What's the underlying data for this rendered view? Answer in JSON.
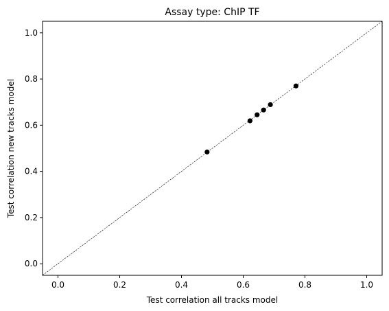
{
  "chart_data": {
    "type": "scatter",
    "title": "Assay type: ChIP TF",
    "xlabel": "Test correlation all tracks model",
    "ylabel": "Test correlation new tracks model",
    "xlim": [
      -0.05,
      1.05
    ],
    "ylim": [
      -0.05,
      1.05
    ],
    "xticks": [
      "0.0",
      "0.2",
      "0.4",
      "0.6",
      "0.8",
      "1.0"
    ],
    "yticks": [
      "0.0",
      "0.2",
      "0.4",
      "0.6",
      "0.8",
      "1.0"
    ],
    "reference_line": "y = x (dashed)",
    "grid": false,
    "point_color": "#000000",
    "points": [
      {
        "x": 0.483,
        "y": 0.484
      },
      {
        "x": 0.622,
        "y": 0.619
      },
      {
        "x": 0.645,
        "y": 0.645
      },
      {
        "x": 0.666,
        "y": 0.666
      },
      {
        "x": 0.688,
        "y": 0.689
      },
      {
        "x": 0.771,
        "y": 0.77
      }
    ]
  }
}
